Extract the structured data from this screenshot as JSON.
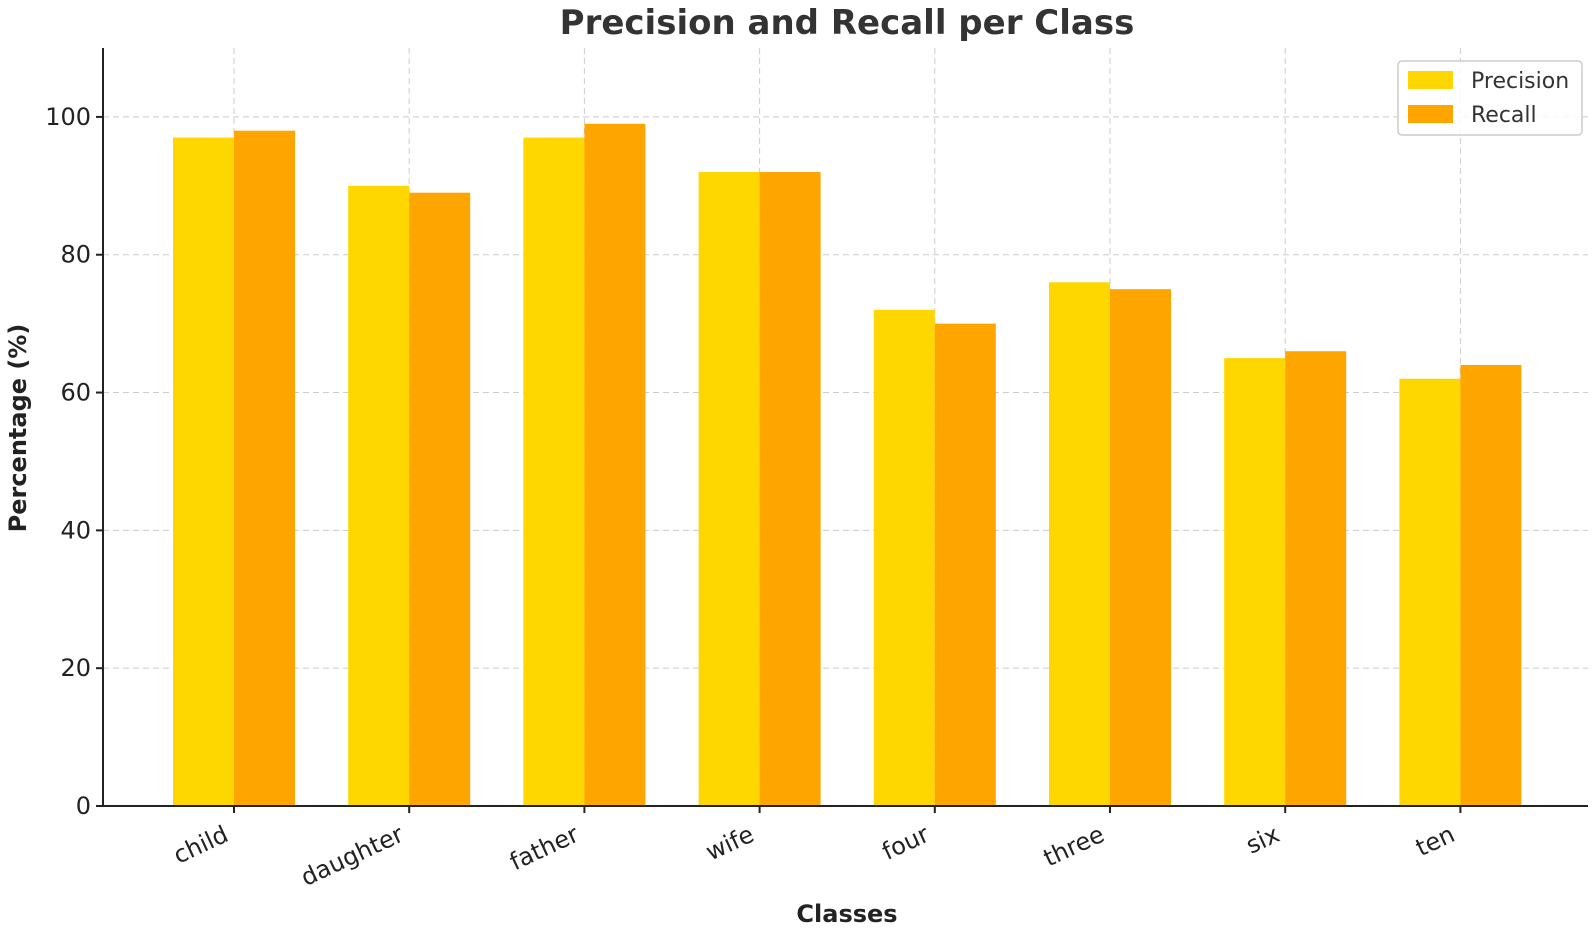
{
  "chart_data": {
    "type": "bar",
    "title": "Precision and Recall per Class",
    "xlabel": "Classes",
    "ylabel": "Percentage (%)",
    "categories": [
      "child",
      "daughter",
      "father",
      "wife",
      "four",
      "three",
      "six",
      "ten"
    ],
    "series": [
      {
        "name": "Precision",
        "color": "#FFD700",
        "values": [
          97,
          90,
          97,
          92,
          72,
          76,
          65,
          62
        ]
      },
      {
        "name": "Recall",
        "color": "#FFA500",
        "values": [
          98,
          89,
          99,
          92,
          70,
          75,
          66,
          64
        ]
      }
    ],
    "ylim": [
      0,
      110
    ],
    "yticks": [
      0,
      20,
      40,
      60,
      80,
      100
    ],
    "grid": true,
    "legend_position": "top-right"
  }
}
